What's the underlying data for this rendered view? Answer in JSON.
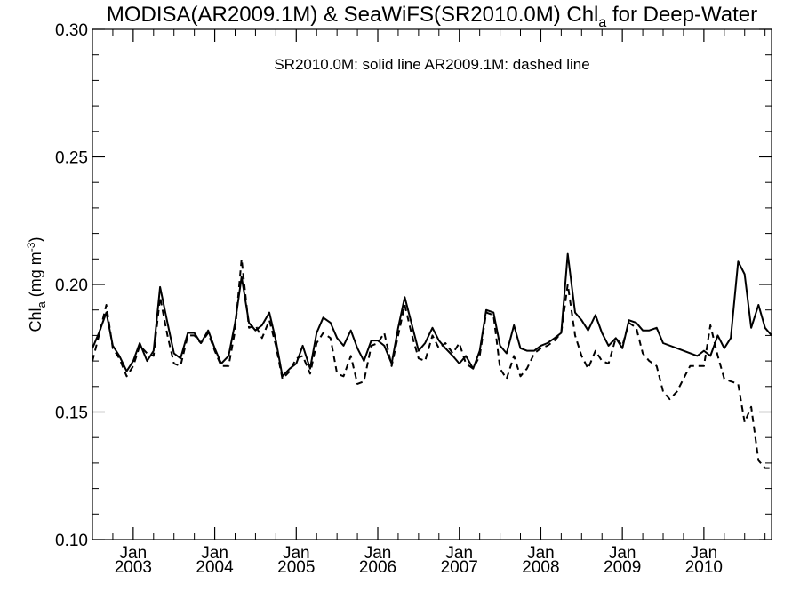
{
  "chart_data": {
    "type": "line",
    "title": {
      "main": "MODISA(AR2009.1M) & SeaWiFS(SR2010.0M)  Chl",
      "sub": "a",
      "suffix": " for Deep-Water"
    },
    "annotation": "SR2010.0M: solid line   AR2009.1M: dashed line",
    "ylabel": {
      "main": "Chl",
      "sub": "a",
      "unit_open": " (mg m",
      "unit_sup": "-3",
      "unit_close": ")"
    },
    "ylim": [
      0.1,
      0.3
    ],
    "yticks": [
      0.1,
      0.15,
      0.2,
      0.25,
      0.3
    ],
    "ytick_labels": [
      "0.10",
      "0.15",
      "0.20",
      "0.25",
      "0.30"
    ],
    "xlim": [
      2002.5,
      2010.83
    ],
    "xticks": [
      {
        "x": 2003.0,
        "month": "Jan",
        "year": "2003"
      },
      {
        "x": 2004.0,
        "month": "Jan",
        "year": "2004"
      },
      {
        "x": 2005.0,
        "month": "Jan",
        "year": "2005"
      },
      {
        "x": 2006.0,
        "month": "Jan",
        "year": "2006"
      },
      {
        "x": 2007.0,
        "month": "Jan",
        "year": "2007"
      },
      {
        "x": 2008.0,
        "month": "Jan",
        "year": "2008"
      },
      {
        "x": 2009.0,
        "month": "Jan",
        "year": "2009"
      },
      {
        "x": 2010.0,
        "month": "Jan",
        "year": "2010"
      }
    ],
    "series": [
      {
        "name": "SR2010.0M",
        "style": "solid",
        "color": "#000000",
        "x": [
          2002.5,
          2002.58,
          2002.67,
          2002.75,
          2002.83,
          2002.92,
          2003.0,
          2003.08,
          2003.17,
          2003.25,
          2003.33,
          2003.42,
          2003.5,
          2003.58,
          2003.67,
          2003.75,
          2003.83,
          2003.92,
          2004.0,
          2004.08,
          2004.17,
          2004.25,
          2004.33,
          2004.42,
          2004.5,
          2004.58,
          2004.67,
          2004.75,
          2004.83,
          2004.92,
          2005.0,
          2005.08,
          2005.17,
          2005.25,
          2005.33,
          2005.42,
          2005.5,
          2005.58,
          2005.67,
          2005.75,
          2005.83,
          2005.92,
          2006.0,
          2006.08,
          2006.17,
          2006.25,
          2006.33,
          2006.42,
          2006.5,
          2006.58,
          2006.67,
          2006.75,
          2006.83,
          2006.92,
          2007.0,
          2007.08,
          2007.17,
          2007.25,
          2007.33,
          2007.42,
          2007.5,
          2007.58,
          2007.67,
          2007.75,
          2007.83,
          2007.92,
          2008.0,
          2008.08,
          2008.17,
          2008.25,
          2008.33,
          2008.42,
          2008.5,
          2008.58,
          2008.67,
          2008.75,
          2008.83,
          2008.92,
          2009.0,
          2009.08,
          2009.17,
          2009.25,
          2009.33,
          2009.42,
          2009.5,
          2009.92,
          2010.0,
          2010.08,
          2010.17,
          2010.25,
          2010.33,
          2010.42,
          2010.5,
          2010.58,
          2010.67,
          2010.75,
          2010.83
        ],
        "y": [
          0.175,
          0.181,
          0.189,
          0.176,
          0.172,
          0.166,
          0.17,
          0.177,
          0.17,
          0.174,
          0.199,
          0.185,
          0.173,
          0.171,
          0.181,
          0.181,
          0.177,
          0.182,
          0.175,
          0.169,
          0.172,
          0.185,
          0.203,
          0.185,
          0.182,
          0.184,
          0.189,
          0.178,
          0.164,
          0.167,
          0.169,
          0.176,
          0.167,
          0.181,
          0.187,
          0.185,
          0.179,
          0.176,
          0.182,
          0.175,
          0.17,
          0.178,
          0.178,
          0.176,
          0.169,
          0.183,
          0.195,
          0.184,
          0.174,
          0.177,
          0.183,
          0.178,
          0.175,
          0.172,
          0.169,
          0.172,
          0.167,
          0.174,
          0.19,
          0.189,
          0.176,
          0.173,
          0.184,
          0.175,
          0.174,
          0.174,
          0.176,
          0.177,
          0.179,
          0.181,
          0.212,
          0.189,
          0.186,
          0.182,
          0.188,
          0.181,
          0.176,
          0.179,
          0.175,
          0.186,
          0.185,
          0.182,
          0.182,
          0.183,
          0.177,
          0.172,
          0.174,
          0.172,
          0.18,
          0.175,
          0.179,
          0.209,
          0.204,
          0.183,
          0.192,
          0.183,
          0.18
        ]
      },
      {
        "name": "AR2009.1M",
        "style": "dashed",
        "color": "#000000",
        "x": [
          2002.5,
          2002.58,
          2002.67,
          2002.75,
          2002.83,
          2002.92,
          2003.0,
          2003.08,
          2003.17,
          2003.25,
          2003.33,
          2003.42,
          2003.5,
          2003.58,
          2003.67,
          2003.75,
          2003.83,
          2003.92,
          2004.0,
          2004.08,
          2004.17,
          2004.25,
          2004.33,
          2004.42,
          2004.5,
          2004.58,
          2004.67,
          2004.75,
          2004.83,
          2004.92,
          2005.0,
          2005.08,
          2005.17,
          2005.25,
          2005.33,
          2005.42,
          2005.5,
          2005.58,
          2005.67,
          2005.75,
          2005.83,
          2005.92,
          2006.0,
          2006.08,
          2006.17,
          2006.25,
          2006.33,
          2006.42,
          2006.5,
          2006.58,
          2006.67,
          2006.75,
          2006.83,
          2006.92,
          2007.0,
          2007.08,
          2007.17,
          2007.25,
          2007.33,
          2007.42,
          2007.5,
          2007.58,
          2007.67,
          2007.75,
          2007.83,
          2007.92,
          2008.0,
          2008.08,
          2008.17,
          2008.25,
          2008.33,
          2008.42,
          2008.5,
          2008.58,
          2008.67,
          2008.75,
          2008.83,
          2008.92,
          2009.0,
          2009.08,
          2009.17,
          2009.25,
          2009.33,
          2009.42,
          2009.5,
          2009.58,
          2009.67,
          2009.75,
          2009.83,
          2009.92,
          2010.0,
          2010.08,
          2010.17,
          2010.25,
          2010.33,
          2010.42,
          2010.5,
          2010.58,
          2010.67,
          2010.75,
          2010.83
        ],
        "y": [
          0.17,
          0.18,
          0.192,
          0.175,
          0.171,
          0.164,
          0.168,
          0.176,
          0.173,
          0.172,
          0.195,
          0.18,
          0.169,
          0.168,
          0.18,
          0.18,
          0.177,
          0.181,
          0.174,
          0.168,
          0.168,
          0.182,
          0.21,
          0.183,
          0.184,
          0.179,
          0.186,
          0.176,
          0.163,
          0.166,
          0.171,
          0.172,
          0.165,
          0.177,
          0.181,
          0.179,
          0.165,
          0.164,
          0.172,
          0.161,
          0.162,
          0.176,
          0.177,
          0.181,
          0.168,
          0.18,
          0.192,
          0.18,
          0.171,
          0.17,
          0.18,
          0.175,
          0.177,
          0.173,
          0.177,
          0.169,
          0.167,
          0.172,
          0.189,
          0.188,
          0.167,
          0.163,
          0.172,
          0.164,
          0.167,
          0.173,
          0.175,
          0.176,
          0.178,
          0.181,
          0.2,
          0.18,
          0.172,
          0.167,
          0.174,
          0.17,
          0.169,
          0.179,
          0.176,
          0.185,
          0.183,
          0.173,
          0.17,
          0.168,
          0.158,
          0.155,
          0.158,
          0.163,
          0.168,
          0.168,
          0.168,
          0.184,
          0.172,
          0.163,
          0.162,
          0.161,
          0.146,
          0.152,
          0.131,
          0.128,
          0.128
        ]
      }
    ],
    "grid": false,
    "legend": "text annotation at top center"
  }
}
